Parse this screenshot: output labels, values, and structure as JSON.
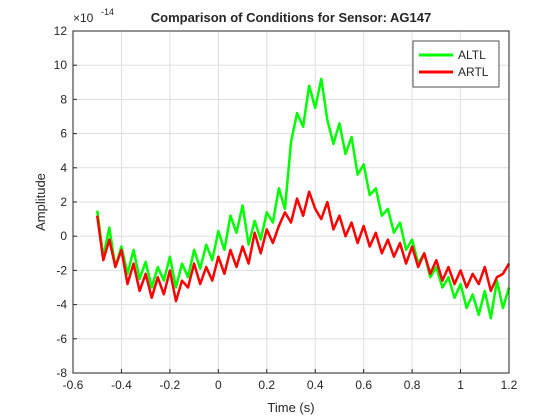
{
  "chart_data": {
    "type": "line",
    "title": "Comparison of Conditions for Sensor: AG147",
    "xlabel": "Time (s)",
    "ylabel": "Amplitude",
    "y_scale_label": "×10",
    "y_scale_exponent": "-14",
    "x": [
      -0.5,
      -0.475,
      -0.45,
      -0.425,
      -0.4,
      -0.375,
      -0.35,
      -0.325,
      -0.3,
      -0.275,
      -0.25,
      -0.225,
      -0.2,
      -0.175,
      -0.15,
      -0.125,
      -0.1,
      -0.075,
      -0.05,
      -0.025,
      0,
      0.025,
      0.05,
      0.075,
      0.1,
      0.125,
      0.15,
      0.175,
      0.2,
      0.225,
      0.25,
      0.275,
      0.3,
      0.325,
      0.35,
      0.375,
      0.4,
      0.425,
      0.45,
      0.475,
      0.5,
      0.525,
      0.55,
      0.575,
      0.6,
      0.625,
      0.65,
      0.675,
      0.7,
      0.725,
      0.75,
      0.775,
      0.8,
      0.825,
      0.85,
      0.875,
      0.9,
      0.925,
      0.95,
      0.975,
      1,
      1.025,
      1.05,
      1.075,
      1.1,
      1.125,
      1.15,
      1.175,
      1.2
    ],
    "series": [
      {
        "name": "ALTL",
        "color": "#00ff00",
        "values": [
          1.5,
          -1.2,
          0.5,
          -1.8,
          -0.6,
          -2.2,
          -0.8,
          -2.5,
          -1.5,
          -3.0,
          -1.8,
          -2.6,
          -1.2,
          -3.0,
          -1.6,
          -2.4,
          -0.8,
          -1.9,
          -0.5,
          -1.4,
          0.3,
          -0.8,
          1.2,
          0.2,
          1.8,
          -0.5,
          0.9,
          -0.2,
          1.4,
          0.8,
          2.8,
          1.6,
          5.5,
          7.2,
          6.4,
          8.8,
          7.5,
          9.2,
          6.8,
          5.4,
          6.6,
          4.8,
          5.8,
          3.6,
          4.2,
          2.4,
          2.8,
          1.2,
          1.6,
          0.2,
          0.8,
          -0.8,
          -0.2,
          -1.6,
          -1.0,
          -2.4,
          -1.8,
          -3.0,
          -2.4,
          -3.6,
          -2.8,
          -4.2,
          -3.4,
          -4.6,
          -3.2,
          -4.8,
          -2.6,
          -4.2,
          -3.0
        ]
      },
      {
        "name": "ARTL",
        "color": "#ff0000",
        "values": [
          1.2,
          -1.4,
          -0.2,
          -1.8,
          -0.8,
          -2.8,
          -1.6,
          -3.2,
          -2.2,
          -3.6,
          -2.4,
          -3.4,
          -2.0,
          -3.8,
          -2.6,
          -3.0,
          -1.6,
          -2.8,
          -1.8,
          -2.6,
          -1.2,
          -2.2,
          -0.8,
          -1.8,
          -0.6,
          -1.6,
          0.2,
          -1.0,
          0.4,
          -0.4,
          0.6,
          1.4,
          0.8,
          2.2,
          1.2,
          2.6,
          1.6,
          1.0,
          2.0,
          0.4,
          1.2,
          0.0,
          0.8,
          -0.4,
          0.6,
          -0.6,
          0.2,
          -1.0,
          -0.2,
          -1.2,
          -0.4,
          -1.6,
          -0.6,
          -1.8,
          -1.0,
          -2.2,
          -1.4,
          -2.6,
          -1.8,
          -2.8,
          -2.0,
          -3.0,
          -2.2,
          -2.8,
          -1.8,
          -3.2,
          -2.4,
          -2.2,
          -1.6
        ]
      }
    ],
    "xlim": [
      -0.6,
      1.2
    ],
    "xticks": [
      -0.6,
      -0.4,
      -0.2,
      0,
      0.2,
      0.4,
      0.6,
      0.8,
      1,
      1.2
    ],
    "ylim": [
      -8,
      12
    ],
    "yticks": [
      -8,
      -6,
      -4,
      -2,
      0,
      2,
      4,
      6,
      8,
      10,
      12
    ],
    "grid": true,
    "legend_loc": "northeast"
  }
}
